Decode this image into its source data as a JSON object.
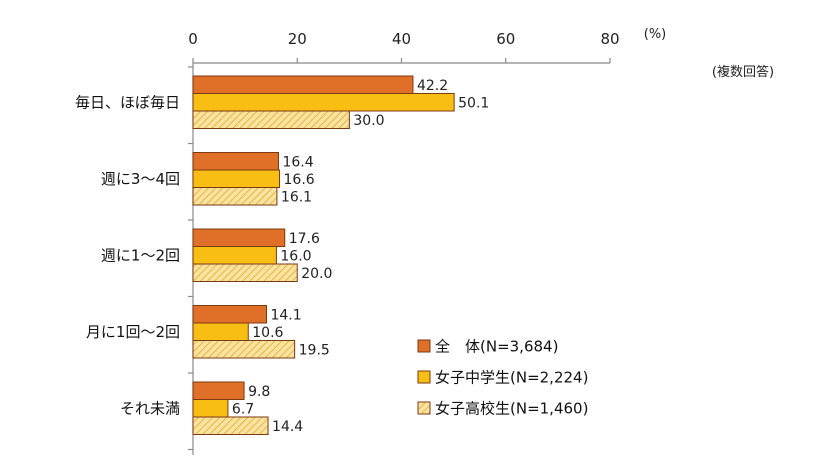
{
  "chart_data": {
    "type": "bar",
    "orientation": "horizontal",
    "categories": [
      "毎日、ほぼ毎日",
      "週に3～4回",
      "週に1～2回",
      "月に1回～2回",
      "それ未満"
    ],
    "series": [
      {
        "name": "全　体(N=3,684)",
        "values": [
          42.2,
          16.4,
          17.6,
          14.1,
          9.8
        ],
        "labels": [
          "42.2",
          "16.4",
          "17.6",
          "14.1",
          "9.8"
        ],
        "color": "#E07028",
        "pattern": "solid"
      },
      {
        "name": "女子中学生(N=2,224)",
        "values": [
          50.1,
          16.6,
          16.0,
          10.6,
          6.7
        ],
        "labels": [
          "50.1",
          "16.6",
          "16.0",
          "10.6",
          "6.7"
        ],
        "color": "#F9BE14",
        "pattern": "solid"
      },
      {
        "name": "女子高校生(N=1,460)",
        "values": [
          30.0,
          16.1,
          20.0,
          19.5,
          14.4
        ],
        "labels": [
          "30.0",
          "16.1",
          "20.0",
          "19.5",
          "14.4"
        ],
        "color": "#F7DE96",
        "pattern": "hatched"
      }
    ],
    "xlim": [
      0,
      80
    ],
    "ticks": [
      0,
      20,
      40,
      60,
      80
    ],
    "unit": "(%)",
    "note": "(複数回答)",
    "legend_position": "bottom-right",
    "grid": false,
    "axis_position": "top"
  }
}
